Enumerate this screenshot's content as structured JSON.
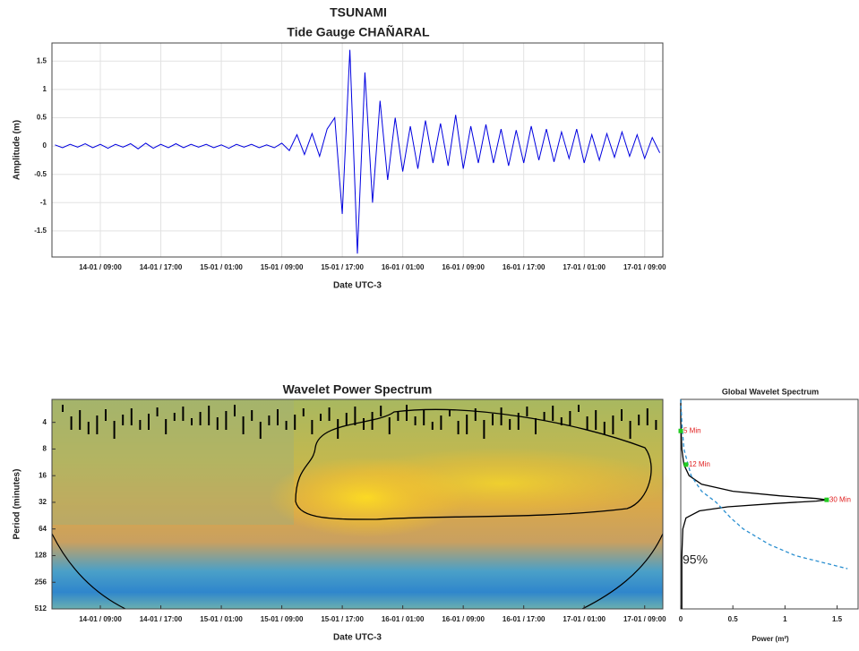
{
  "chart_data": [
    {
      "type": "line",
      "title": "TSUNAMI",
      "subtitle": "Tide Gauge CHAÑARAL",
      "x_label": "Date UTC-3",
      "y_label": "Amplitude (m)",
      "color": "#0000e0",
      "grid": true,
      "xlim": [
        2.6,
        83.4
      ],
      "ylim": [
        -1.96,
        1.82
      ],
      "xticks": [
        {
          "value": 9,
          "label": "14-01 / 09:00"
        },
        {
          "value": 17,
          "label": "14-01 / 17:00"
        },
        {
          "value": 25,
          "label": "15-01 / 01:00"
        },
        {
          "value": 33,
          "label": "15-01 / 09:00"
        },
        {
          "value": 41,
          "label": "15-01 / 17:00"
        },
        {
          "value": 49,
          "label": "16-01 / 01:00"
        },
        {
          "value": 57,
          "label": "16-01 / 09:00"
        },
        {
          "value": 65,
          "label": "16-01 / 17:00"
        },
        {
          "value": 73,
          "label": "17-01 / 01:00"
        },
        {
          "value": 81,
          "label": "17-01 / 09:00"
        }
      ],
      "yticks": [
        1.5,
        1,
        0.5,
        0,
        -0.5,
        -1,
        -1.5
      ],
      "x": [
        3,
        4,
        5,
        6,
        7,
        8,
        9,
        10,
        11,
        12,
        13,
        14,
        15,
        16,
        17,
        18,
        19,
        20,
        21,
        22,
        23,
        24,
        25,
        26,
        27,
        28,
        29,
        30,
        31,
        32,
        33,
        34,
        35,
        36,
        37,
        38,
        39,
        40,
        41,
        42,
        43,
        44,
        45,
        46,
        47,
        48,
        49,
        50,
        51,
        52,
        53,
        54,
        55,
        56,
        57,
        58,
        59,
        60,
        61,
        62,
        63,
        64,
        65,
        66,
        67,
        68,
        69,
        70,
        71,
        72,
        73,
        74,
        75,
        76,
        77,
        78,
        79,
        80,
        81,
        82,
        83
      ],
      "values": [
        0.02,
        -0.03,
        0.03,
        -0.02,
        0.04,
        -0.03,
        0.03,
        -0.04,
        0.03,
        -0.02,
        0.04,
        -0.05,
        0.05,
        -0.04,
        0.03,
        -0.03,
        0.04,
        -0.03,
        0.03,
        -0.02,
        0.03,
        -0.03,
        0.02,
        -0.04,
        0.03,
        -0.02,
        0.03,
        -0.03,
        0.02,
        -0.03,
        0.05,
        -0.08,
        0.2,
        -0.15,
        0.22,
        -0.18,
        0.3,
        0.5,
        -1.2,
        1.7,
        -1.9,
        1.3,
        -1.0,
        0.8,
        -0.6,
        0.5,
        -0.45,
        0.35,
        -0.4,
        0.45,
        -0.3,
        0.4,
        -0.35,
        0.55,
        -0.4,
        0.35,
        -0.3,
        0.38,
        -0.3,
        0.3,
        -0.35,
        0.28,
        -0.3,
        0.35,
        -0.25,
        0.3,
        -0.28,
        0.25,
        -0.22,
        0.3,
        -0.3,
        0.2,
        -0.25,
        0.22,
        -0.2,
        0.25,
        -0.18,
        0.2,
        -0.22,
        0.15,
        -0.12
      ]
    },
    {
      "type": "heatmap",
      "title": "Wavelet Power Spectrum",
      "x_label": "Date UTC-3",
      "y_label": "Period (minutes)",
      "log_y": true,
      "y_reversed": true,
      "xlim": [
        2.6,
        83.4
      ],
      "ylim": [
        2.2,
        512
      ],
      "xticks": [
        {
          "value": 9,
          "label": "14-01 / 09:00"
        },
        {
          "value": 17,
          "label": "14-01 / 17:00"
        },
        {
          "value": 25,
          "label": "15-01 / 01:00"
        },
        {
          "value": 33,
          "label": "15-01 / 09:00"
        },
        {
          "value": 41,
          "label": "15-01 / 17:00"
        },
        {
          "value": 49,
          "label": "16-01 / 01:00"
        },
        {
          "value": 57,
          "label": "16-01 / 09:00"
        },
        {
          "value": 65,
          "label": "16-01 / 17:00"
        },
        {
          "value": 73,
          "label": "17-01 / 01:00"
        },
        {
          "value": 81,
          "label": "17-01 / 09:00"
        }
      ],
      "yticks": [
        4,
        8,
        16,
        32,
        64,
        128,
        256,
        512
      ]
    },
    {
      "type": "spectrum",
      "title": "Global Wavelet Spectrum",
      "x_label": "Power (m²)",
      "log_y": true,
      "y_reversed": true,
      "xlim": [
        0,
        1.71
      ],
      "ylim": [
        2.2,
        512
      ],
      "xticks": [
        0,
        0.5,
        1,
        1.5
      ],
      "series": [
        {
          "color": "#000000",
          "dashed": false,
          "periods": [
            2.2,
            4,
            8,
            12,
            16,
            20,
            24,
            27,
            29,
            30,
            31,
            33,
            36,
            40,
            48,
            64,
            128,
            256,
            512
          ],
          "values": [
            0,
            0,
            0.01,
            0.03,
            0.08,
            0.2,
            0.5,
            0.95,
            1.3,
            1.4,
            1.3,
            0.9,
            0.45,
            0.18,
            0.05,
            0.02,
            0.01,
            0.01,
            0.01
          ]
        },
        {
          "color": "#2a8fd0",
          "dashed": true,
          "periods": [
            2.2,
            4,
            8,
            16,
            24,
            32,
            48,
            64,
            96,
            128,
            180
          ],
          "values": [
            0,
            0.01,
            0.03,
            0.1,
            0.2,
            0.34,
            0.48,
            0.6,
            0.85,
            1.1,
            1.6
          ]
        }
      ],
      "annotations": [
        {
          "text": "5 Min",
          "x": 0,
          "y": 5
        },
        {
          "text": "12 Min",
          "x": 0.05,
          "y": 12
        },
        {
          "text": "30 Min",
          "x": 1.4,
          "y": 30
        }
      ],
      "significance_label": "95%"
    }
  ]
}
